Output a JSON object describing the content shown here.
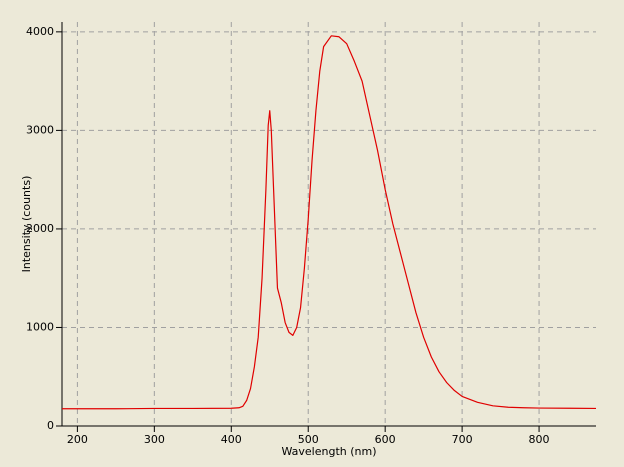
{
  "chart_data": {
    "type": "line",
    "x_label": "Wavelength (nm)",
    "y_label": "Intensity (counts)",
    "x": [
      180,
      250,
      300,
      350,
      400,
      410,
      415,
      420,
      425,
      430,
      435,
      440,
      445,
      448,
      450,
      452,
      455,
      458,
      460,
      465,
      470,
      475,
      480,
      485,
      490,
      495,
      500,
      505,
      510,
      515,
      520,
      530,
      540,
      550,
      560,
      570,
      580,
      590,
      600,
      610,
      620,
      630,
      640,
      650,
      660,
      670,
      680,
      690,
      700,
      720,
      740,
      760,
      780,
      800,
      840,
      874
    ],
    "values": [
      175,
      175,
      178,
      178,
      180,
      185,
      200,
      260,
      380,
      600,
      900,
      1500,
      2400,
      3050,
      3200,
      3000,
      2400,
      1800,
      1400,
      1250,
      1050,
      950,
      920,
      1000,
      1200,
      1600,
      2100,
      2700,
      3200,
      3600,
      3850,
      3960,
      3950,
      3880,
      3700,
      3500,
      3150,
      2800,
      2400,
      2050,
      1750,
      1450,
      1150,
      900,
      700,
      550,
      440,
      360,
      300,
      240,
      205,
      190,
      185,
      182,
      180,
      178
    ],
    "color": "#e00000",
    "xlim": [
      180,
      874
    ],
    "ylim": [
      0,
      4100
    ],
    "xticks": [
      200,
      300,
      400,
      500,
      600,
      700,
      800
    ],
    "yticks": [
      0,
      1000,
      2000,
      3000,
      4000
    ],
    "grid": true
  }
}
